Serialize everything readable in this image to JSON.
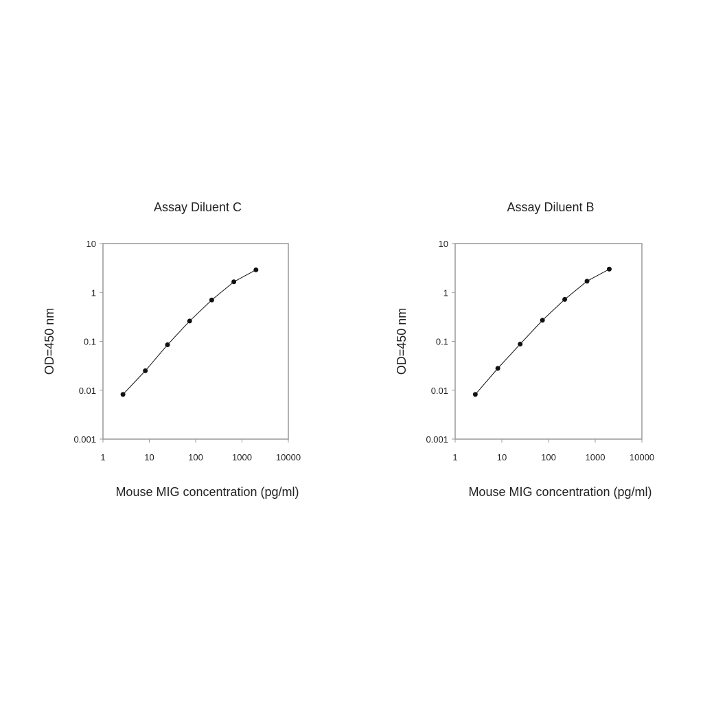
{
  "chart_data": [
    {
      "type": "line",
      "title": "Assay Diluent C",
      "x_label": "Mouse MIG concentration (pg/ml)",
      "y_label": "OD=450 nm",
      "x": [
        2.7,
        8.2,
        24.7,
        74.1,
        222.2,
        666.7,
        2000
      ],
      "series": [
        {
          "name": "Assay Diluent C",
          "color": "#111111",
          "values": [
            0.0082,
            0.025,
            0.085,
            0.26,
            0.7,
            1.65,
            2.9
          ]
        }
      ],
      "xlim": [
        1,
        10000
      ],
      "xticks": [
        1,
        10,
        100,
        1000,
        10000
      ],
      "ylim": [
        0.001,
        10
      ],
      "yticks": [
        0.001,
        0.01,
        0.1,
        1,
        10
      ],
      "log_x": true,
      "log_y": true,
      "grid": false
    },
    {
      "type": "line",
      "title": "Assay Diluent B",
      "x_label": "Mouse MIG concentration (pg/ml)",
      "y_label": "OD=450 nm",
      "x": [
        2.7,
        8.2,
        24.7,
        74.1,
        222.2,
        666.7,
        2000
      ],
      "series": [
        {
          "name": "Assay Diluent B",
          "color": "#111111",
          "values": [
            0.0082,
            0.028,
            0.088,
            0.27,
            0.72,
            1.7,
            3.0
          ]
        }
      ],
      "xlim": [
        1,
        10000
      ],
      "xticks": [
        1,
        10,
        100,
        1000,
        10000
      ],
      "ylim": [
        0.001,
        10
      ],
      "yticks": [
        0.001,
        0.01,
        0.1,
        1,
        10
      ],
      "log_x": true,
      "log_y": true,
      "grid": false
    }
  ]
}
